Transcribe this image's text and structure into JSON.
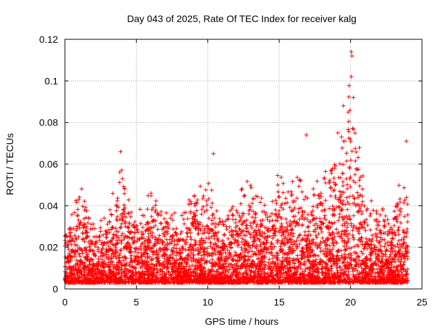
{
  "chart_data": {
    "type": "scatter",
    "title": "Day 043 of 2025, Rate Of TEC Index for receiver kalg",
    "xlabel": "GPS time / hours",
    "ylabel": "ROTI / TECUs",
    "xlim": [
      0,
      25
    ],
    "ylim": [
      0,
      0.12
    ],
    "xticks": [
      "0",
      "5",
      "10",
      "15",
      "20",
      "25"
    ],
    "yticks": [
      "0",
      "0.02",
      "0.04",
      "0.06",
      "0.08",
      "0.1",
      "0.12"
    ],
    "grid": true,
    "marker": "+",
    "color": "#ff0000",
    "series": [
      {
        "name": "ROTI",
        "envelope_x": [
          0,
          0.5,
          1,
          1.5,
          2,
          3,
          4,
          5,
          6,
          7,
          8,
          9,
          10,
          11,
          12,
          13,
          14,
          15,
          16,
          17,
          18,
          18.5,
          19,
          19.5,
          20,
          20.5,
          21,
          22,
          23,
          23.5,
          24
        ],
        "envelope_upper": [
          0.03,
          0.035,
          0.05,
          0.045,
          0.03,
          0.035,
          0.06,
          0.035,
          0.05,
          0.045,
          0.035,
          0.05,
          0.05,
          0.035,
          0.045,
          0.055,
          0.04,
          0.055,
          0.06,
          0.045,
          0.06,
          0.07,
          0.065,
          0.08,
          0.11,
          0.08,
          0.045,
          0.04,
          0.035,
          0.06,
          0.045
        ],
        "highlight_points": [
          {
            "x": 3.9,
            "y": 0.066
          },
          {
            "x": 10.4,
            "y": 0.065
          },
          {
            "x": 16.9,
            "y": 0.074
          },
          {
            "x": 19.1,
            "y": 0.075
          },
          {
            "x": 19.5,
            "y": 0.088
          },
          {
            "x": 20.05,
            "y": 0.114
          },
          {
            "x": 20.1,
            "y": 0.112
          },
          {
            "x": 20.05,
            "y": 0.102
          },
          {
            "x": 20.2,
            "y": 0.092
          },
          {
            "x": 23.9,
            "y": 0.071
          }
        ]
      }
    ]
  }
}
